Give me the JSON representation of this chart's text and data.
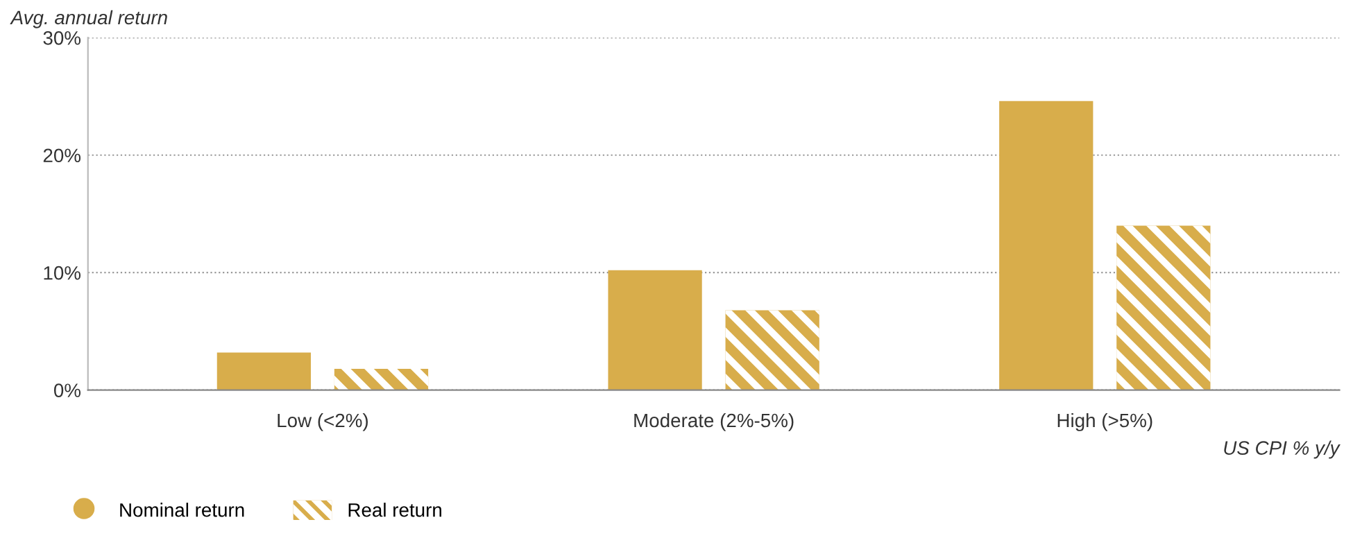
{
  "chart_data": {
    "type": "bar",
    "ylabel": "Avg. annual return",
    "xlabel": "US CPI % y/y",
    "categories": [
      "Low (<2%)",
      "Moderate (2%-5%)",
      "High (>5%)"
    ],
    "series": [
      {
        "name": "Nominal return",
        "color": "#d8ad4b",
        "values": [
          3.2,
          10.2,
          24.6
        ]
      },
      {
        "name": "Real return",
        "color": "#d8ad4b",
        "values": [
          1.8,
          6.8,
          14.0
        ]
      }
    ],
    "ylim": [
      0,
      30
    ],
    "yticks": [
      {
        "value": 0,
        "label": "0%"
      },
      {
        "value": 10,
        "label": "10%"
      },
      {
        "value": 20,
        "label": "20%"
      },
      {
        "value": 30,
        "label": "30%"
      }
    ],
    "grid": "y",
    "legend": "bottom left"
  }
}
